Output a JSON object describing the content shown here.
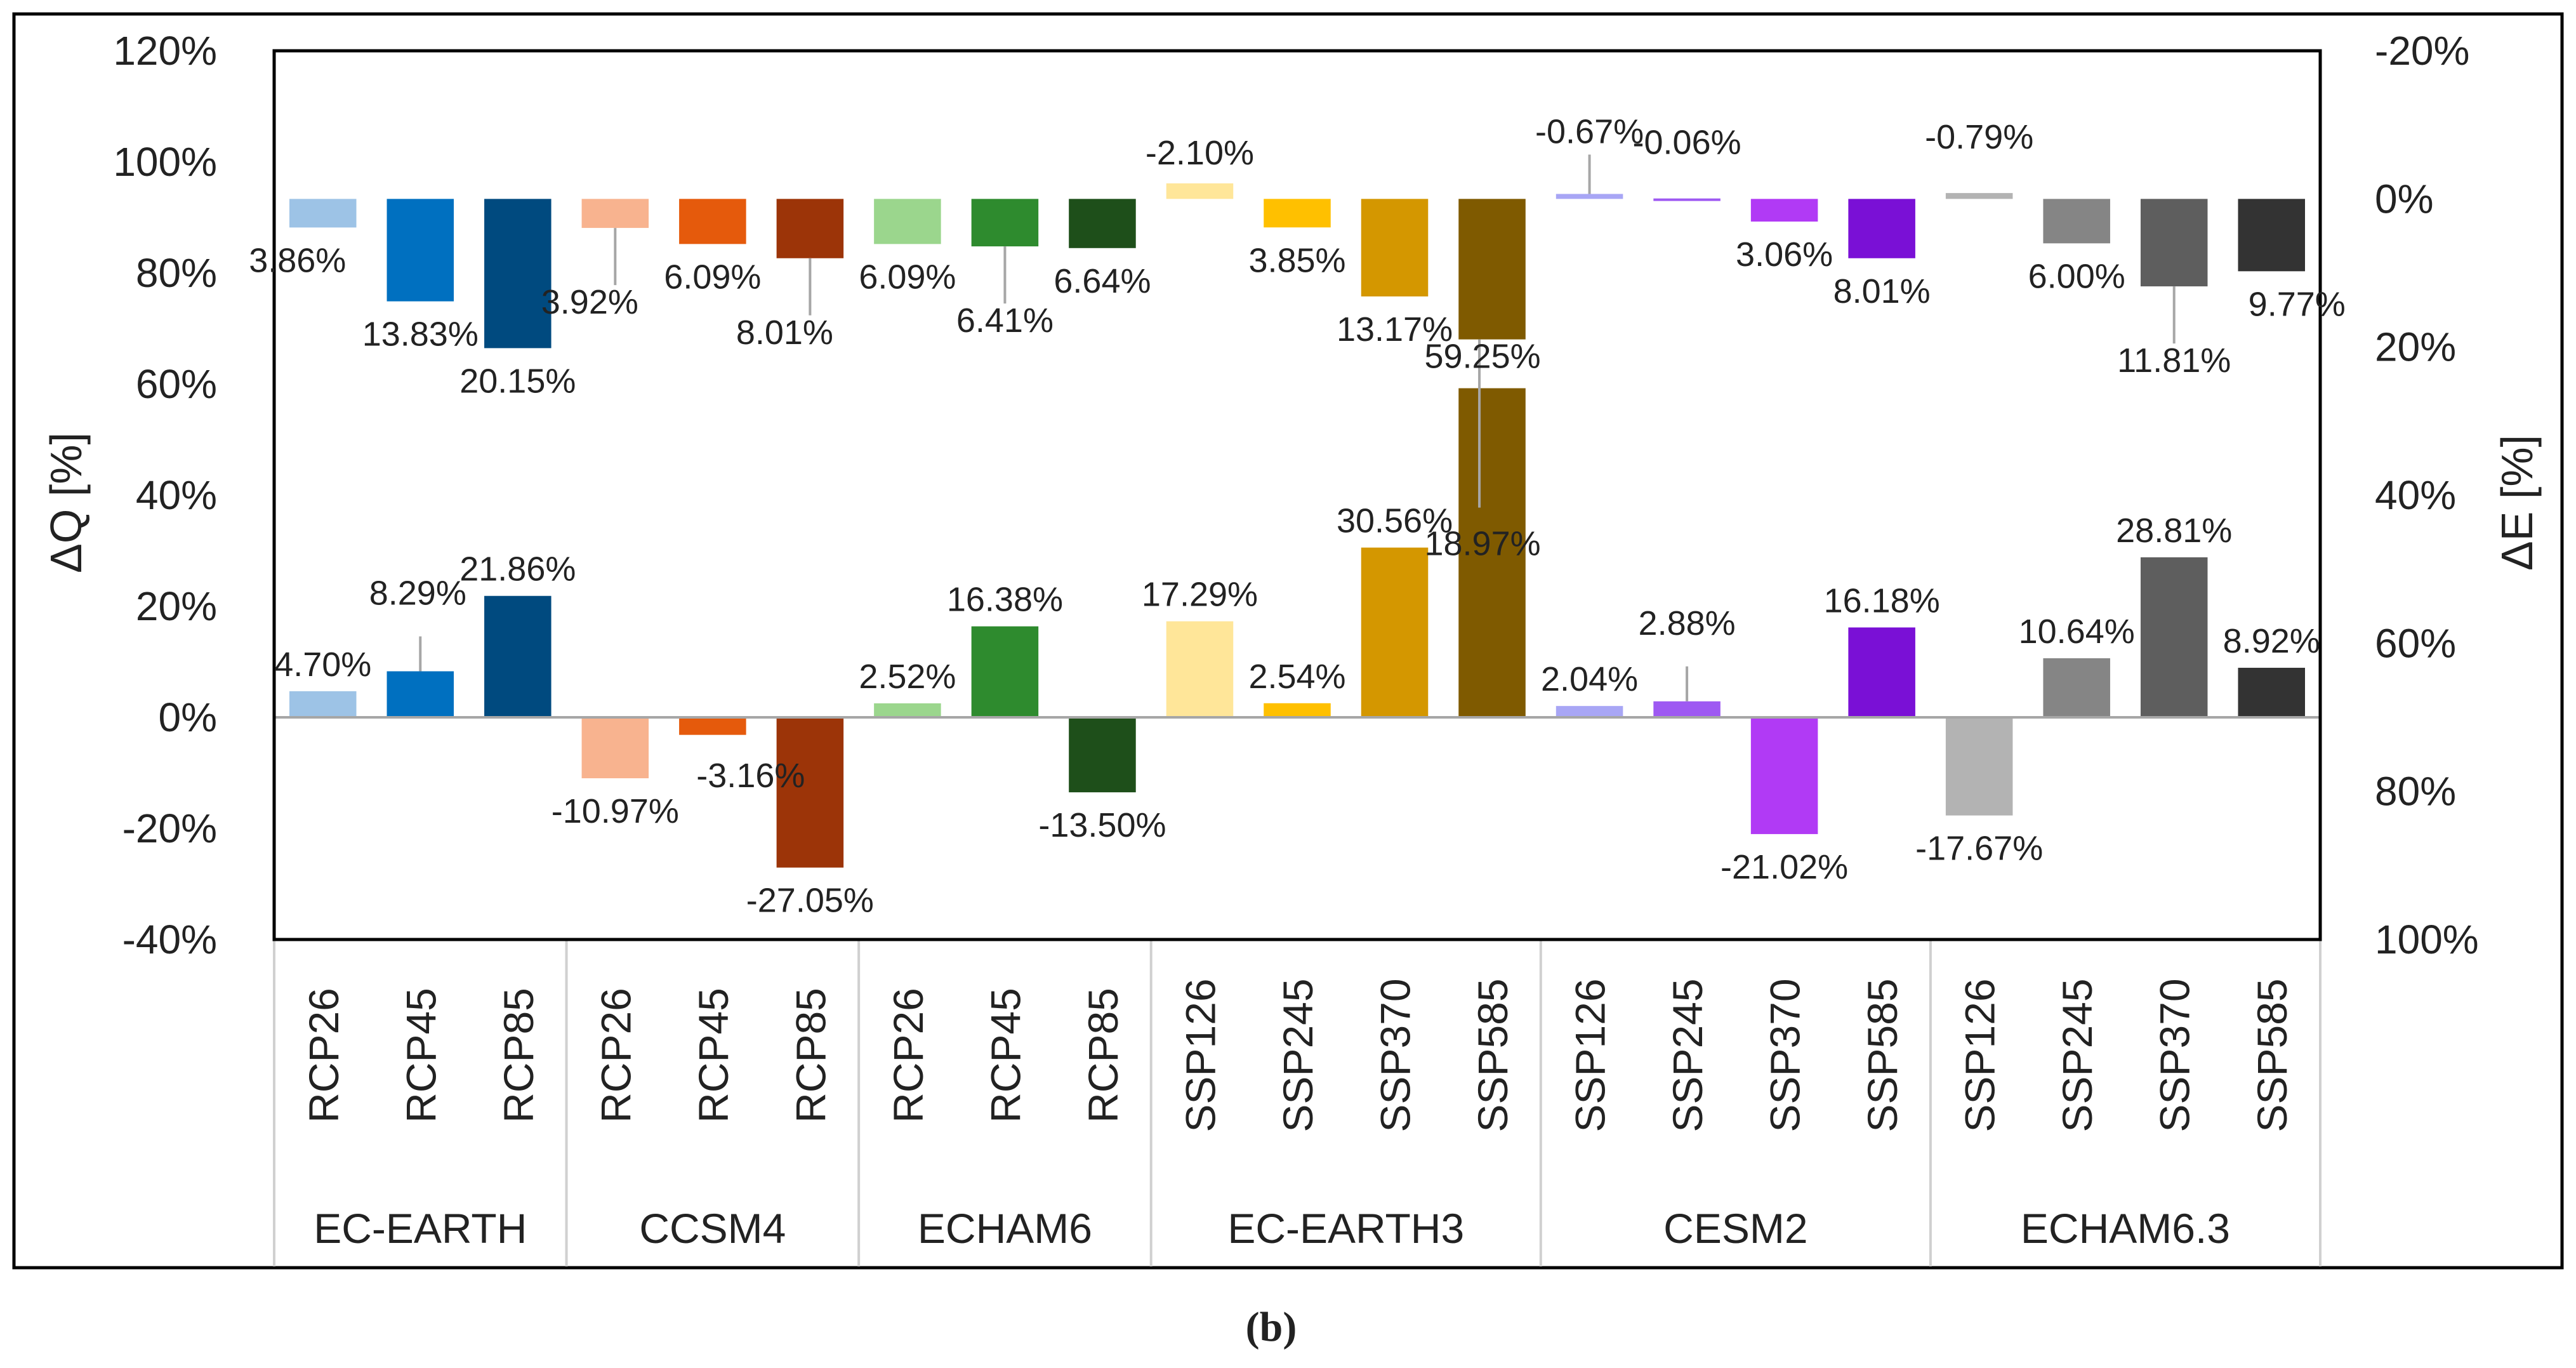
{
  "chart_data": {
    "type": "bar",
    "caption": "(b)",
    "ylabel_left": "ΔQ [%]",
    "ylabel_right": "ΔE [%]",
    "left_axis": {
      "ylim": [
        -40,
        120
      ],
      "ticks": [
        120,
        100,
        80,
        60,
        40,
        20,
        0,
        -20,
        -40
      ],
      "tick_labels": [
        "120%",
        "100%",
        "80%",
        "60%",
        "40%",
        "20%",
        "0%",
        "-20%",
        "-40%"
      ]
    },
    "right_axis": {
      "ylim": [
        -20,
        100
      ],
      "inverted": true,
      "ticks": [
        -20,
        0,
        20,
        40,
        60,
        80,
        100
      ],
      "tick_labels": [
        "-20%",
        "0%",
        "20%",
        "40%",
        "60%",
        "80%",
        "100%"
      ]
    },
    "groups": [
      {
        "name": "EC-EARTH",
        "categories": [
          {
            "label": "RCP26",
            "q": 4.7,
            "q_label": "4.70%",
            "e": 3.86,
            "e_label": "3.86%",
            "color": "#9DC3E6"
          },
          {
            "label": "RCP45",
            "q": 8.29,
            "q_label": "8.29%",
            "e": 13.83,
            "e_label": "13.83%",
            "color": "#0070C0"
          },
          {
            "label": "RCP85",
            "q": 21.86,
            "q_label": "21.86%",
            "e": 20.15,
            "e_label": "20.15%",
            "color": "#004A7F"
          }
        ]
      },
      {
        "name": "CCSM4",
        "categories": [
          {
            "label": "RCP26",
            "q": -10.97,
            "q_label": "-10.97%",
            "e": 3.92,
            "e_label": "3.92%",
            "color": "#F8B38F"
          },
          {
            "label": "RCP45",
            "q": -3.16,
            "q_label": "-3.16%",
            "e": 6.09,
            "e_label": "6.09%",
            "color": "#E55A0C"
          },
          {
            "label": "RCP85",
            "q": -27.05,
            "q_label": "-27.05%",
            "e": 8.01,
            "e_label": "8.01%",
            "color": "#9C3408"
          }
        ]
      },
      {
        "name": "ECHAM6",
        "categories": [
          {
            "label": "RCP26",
            "q": 2.52,
            "q_label": "2.52%",
            "e": 6.09,
            "e_label": "6.09%",
            "color": "#9BD68D"
          },
          {
            "label": "RCP45",
            "q": 16.38,
            "q_label": "16.38%",
            "e": 6.41,
            "e_label": "6.41%",
            "color": "#2E8B2E"
          },
          {
            "label": "RCP85",
            "q": -13.5,
            "q_label": "-13.50%",
            "e": 6.64,
            "e_label": "6.64%",
            "color": "#1E4F1A"
          }
        ]
      },
      {
        "name": "EC-EARTH3",
        "categories": [
          {
            "label": "SSP126",
            "q": 17.29,
            "q_label": "17.29%",
            "e": -2.1,
            "e_label": "-2.10%",
            "color": "#FFE699"
          },
          {
            "label": "SSP245",
            "q": 2.54,
            "q_label": "2.54%",
            "e": 3.85,
            "e_label": "3.85%",
            "color": "#FFC000"
          },
          {
            "label": "SSP370",
            "q": 30.56,
            "q_label": "30.56%",
            "e": 13.17,
            "e_label": "13.17%",
            "color": "#D49700"
          },
          {
            "label": "SSP585",
            "q": 59.25,
            "q_label": "59.25%",
            "e": 18.97,
            "e_label": "18.97%",
            "color": "#7F5A00"
          }
        ]
      },
      {
        "name": "CESM2",
        "categories": [
          {
            "label": "SSP126",
            "q": 2.04,
            "q_label": "2.04%",
            "e": -0.67,
            "e_label": "-0.67%",
            "color": "#A8A6F5"
          },
          {
            "label": "SSP245",
            "q": 2.88,
            "q_label": "2.88%",
            "e": -0.06,
            "e_label": "-0.06%",
            "color": "#9E59F2"
          },
          {
            "label": "SSP370",
            "q": -21.02,
            "q_label": "-21.02%",
            "e": 3.06,
            "e_label": "3.06%",
            "color": "#B13AF5"
          },
          {
            "label": "SSP585",
            "q": 16.18,
            "q_label": "16.18%",
            "e": 8.01,
            "e_label": "8.01%",
            "color": "#7A10D6"
          }
        ]
      },
      {
        "name": "ECHAM6.3",
        "categories": [
          {
            "label": "SSP126",
            "q": -17.67,
            "q_label": "-17.67%",
            "e": -0.79,
            "e_label": "-0.79%",
            "color": "#B3B3B3"
          },
          {
            "label": "SSP245",
            "q": 10.64,
            "q_label": "10.64%",
            "e": 6.0,
            "e_label": "6.00%",
            "color": "#858585"
          },
          {
            "label": "SSP370",
            "q": 28.81,
            "q_label": "28.81%",
            "e": 11.81,
            "e_label": "11.81%",
            "color": "#5E5E5E"
          },
          {
            "label": "SSP585",
            "q": 8.92,
            "q_label": "8.92%",
            "e": 9.77,
            "e_label": "9.77%",
            "color": "#333333"
          }
        ]
      }
    ]
  }
}
